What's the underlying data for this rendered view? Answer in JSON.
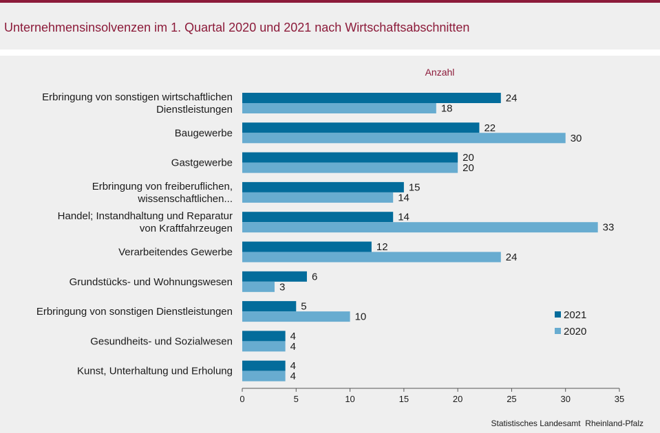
{
  "title": "Unternehmensinsolvenzen im 1. Quartal 2020 und 2021 nach Wirtschaftsabschnitten",
  "source": "Statistisches Landesamt  Rheinland-Pfalz",
  "colors": {
    "accent": "#8c1b3a",
    "series_2021": "#036c9b",
    "series_2020": "#68acd0"
  },
  "chart_data": {
    "type": "bar",
    "orientation": "horizontal",
    "axis_title": "Anzahl",
    "categories": [
      [
        "Erbringung von sonstigen wirtschaftlichen",
        "Dienstleistungen"
      ],
      [
        "Baugewerbe"
      ],
      [
        "Gastgewerbe"
      ],
      [
        "Erbringung von freiberuflichen,",
        "wissenschaftlichen..."
      ],
      [
        "Handel; Instandhaltung und Reparatur",
        "von Kraftfahrzeugen"
      ],
      [
        "Verarbeitendes Gewerbe"
      ],
      [
        "Grundstücks- und Wohnungswesen"
      ],
      [
        "Erbringung von sonstigen Dienstleistungen"
      ],
      [
        "Gesundheits- und Sozialwesen"
      ],
      [
        "Kunst, Unterhaltung und Erholung"
      ]
    ],
    "series": [
      {
        "name": "2021",
        "values": [
          24,
          22,
          20,
          15,
          14,
          12,
          6,
          5,
          4,
          4
        ]
      },
      {
        "name": "2020",
        "values": [
          18,
          30,
          20,
          14,
          33,
          24,
          3,
          10,
          4,
          4
        ]
      }
    ],
    "xlim": [
      0,
      35
    ],
    "ticks": [
      0,
      5,
      10,
      15,
      20,
      25,
      30,
      35
    ],
    "legend": "right",
    "grid": false
  }
}
